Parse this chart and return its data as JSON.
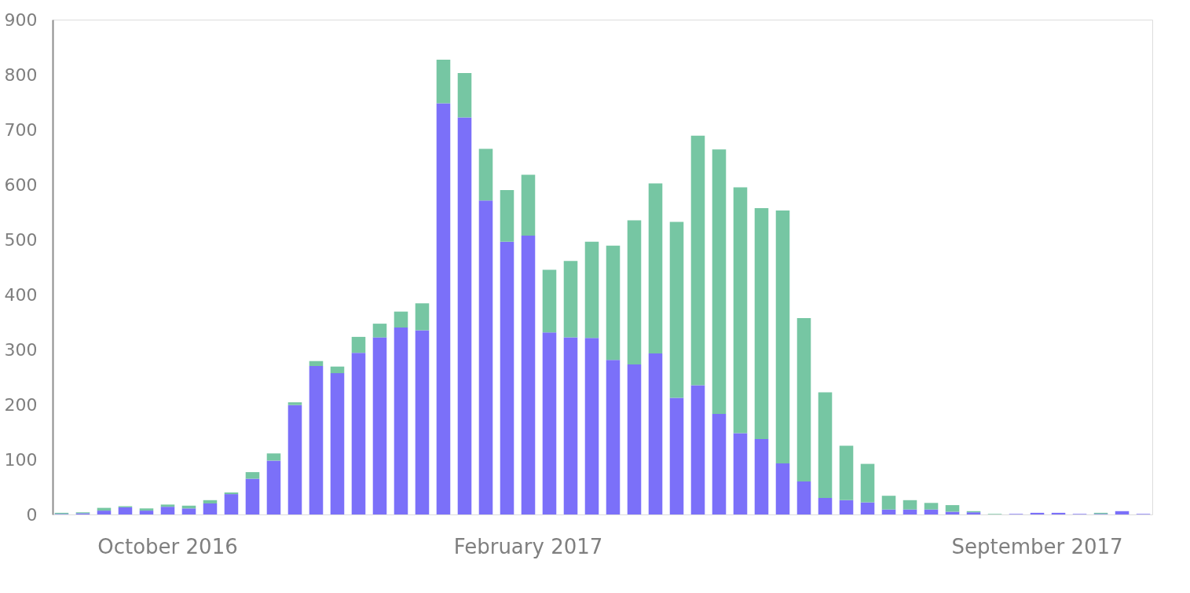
{
  "chart_data": {
    "type": "bar",
    "stacked": true,
    "categories": [
      null,
      null,
      null,
      null,
      null,
      "October 2016",
      null,
      null,
      null,
      null,
      null,
      null,
      null,
      null,
      null,
      null,
      null,
      null,
      null,
      null,
      null,
      null,
      "February 2017",
      null,
      null,
      null,
      null,
      null,
      null,
      null,
      null,
      null,
      null,
      null,
      null,
      null,
      null,
      null,
      null,
      null,
      null,
      null,
      null,
      null,
      null,
      null,
      "September 2017",
      null,
      null,
      null,
      null,
      null
    ],
    "series": [
      {
        "color": "#7b70f9",
        "values": [
          1,
          2,
          7,
          13,
          7,
          14,
          11,
          20,
          37,
          65,
          98,
          199,
          270,
          257,
          294,
          322,
          340,
          335,
          748,
          722,
          571,
          496,
          507,
          331,
          322,
          321,
          281,
          273,
          293,
          212,
          235,
          183,
          148,
          137,
          93,
          60,
          30,
          26,
          22,
          9,
          9,
          9,
          5,
          4,
          0,
          1,
          3,
          3,
          1,
          1,
          6,
          1
        ]
      },
      {
        "color": "#76c6a3",
        "values": [
          2,
          2,
          5,
          2,
          4,
          4,
          5,
          6,
          3,
          12,
          13,
          5,
          9,
          12,
          29,
          25,
          29,
          49,
          79,
          81,
          94,
          94,
          111,
          114,
          139,
          175,
          208,
          262,
          309,
          320,
          454,
          481,
          447,
          420,
          460,
          297,
          192,
          99,
          70,
          25,
          17,
          12,
          12,
          2,
          1,
          0,
          0,
          0,
          0,
          2,
          0,
          0
        ]
      }
    ],
    "ylim": [
      0,
      900
    ],
    "yticks": [
      0,
      100,
      200,
      300,
      400,
      500,
      600,
      700,
      800,
      900
    ],
    "grid": false,
    "legend": false
  }
}
